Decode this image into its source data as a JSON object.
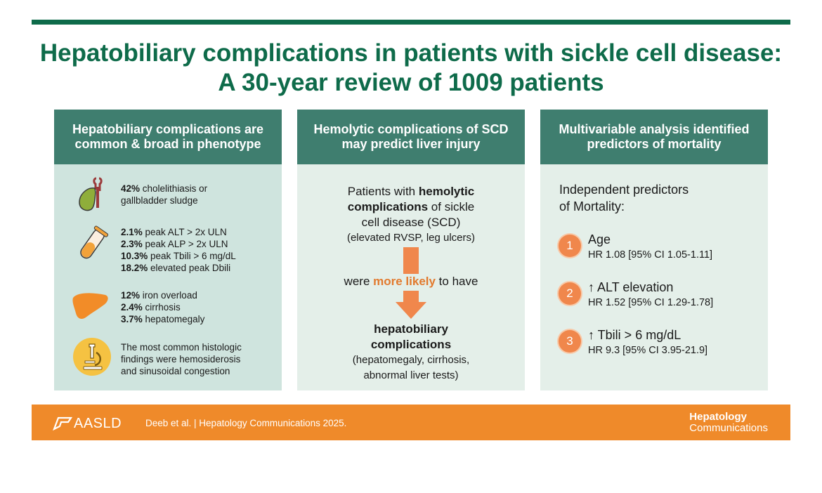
{
  "title": "Hepatobiliary complications in patients with sickle cell disease: A 30-year review of 1009 patients",
  "columns": {
    "c1": {
      "heading": "Hepatobiliary complications are common & broad in phenotype",
      "items": [
        {
          "icon": "gallbladder-icon",
          "lines": [
            {
              "b": "42%",
              "t": " cholelithiasis or"
            },
            {
              "b": "",
              "t": "gallbladder sludge"
            }
          ]
        },
        {
          "icon": "test-tube-icon",
          "lines": [
            {
              "b": "2.1%",
              "t": " peak ALT > 2x ULN"
            },
            {
              "b": "2.3%",
              "t": " peak ALP > 2x ULN"
            },
            {
              "b": "10.3%",
              "t": " peak Tbili > 6 mg/dL"
            },
            {
              "b": "18.2%",
              "t": " elevated peak Dbili"
            }
          ]
        },
        {
          "icon": "liver-icon",
          "lines": [
            {
              "b": "12%",
              "t": " iron overload"
            },
            {
              "b": "2.4%",
              "t": " cirrhosis"
            },
            {
              "b": "3.7%",
              "t": " hepatomegaly"
            }
          ]
        },
        {
          "icon": "microscope-icon",
          "lines": [
            {
              "b": "",
              "t": "The most common histologic"
            },
            {
              "b": "",
              "t": "findings were hemosiderosis"
            },
            {
              "b": "",
              "t": "and sinusoidal congestion"
            }
          ]
        }
      ]
    },
    "c2": {
      "heading": "Hemolytic complications of SCD may predict liver injury",
      "p1": "Patients with",
      "p1b": "hemolytic",
      "p2b": "complications",
      "p2": " of sickle",
      "p3": "cell disease (SCD)",
      "p4": "(elevated RVSP, leg ulcers)",
      "m1": "were ",
      "m2": "more likely",
      "m3": " to have",
      "r1": "hepatobiliary",
      "r2": "complications",
      "r3": "(hepatomegaly, cirrhosis,",
      "r4": "abnormal liver tests)"
    },
    "c3": {
      "heading": "Multivariable analysis identified predictors of mortality",
      "intro1": "Independent predictors",
      "intro2": "of Mortality:",
      "predictors": [
        {
          "num": "1",
          "title": "Age",
          "hr": "HR 1.08 [95% CI 1.05-1.11]"
        },
        {
          "num": "2",
          "title": "↑ ALT elevation",
          "hr": "HR 1.52 [95% CI 1.29-1.78]"
        },
        {
          "num": "3",
          "title": "↑ Tbili > 6 mg/dL",
          "hr": "HR 9.3 [95% CI 3.95-21.9]"
        }
      ]
    }
  },
  "footer": {
    "org": "AASLD",
    "citation": "Deeb et al. |  Hepatology Communications 2025.",
    "journal1": "Hepatology",
    "journal2": "Communications"
  },
  "colors": {
    "green": "#0e6b4a",
    "header": "#3f7e6f",
    "orange": "#ef8a2a"
  }
}
